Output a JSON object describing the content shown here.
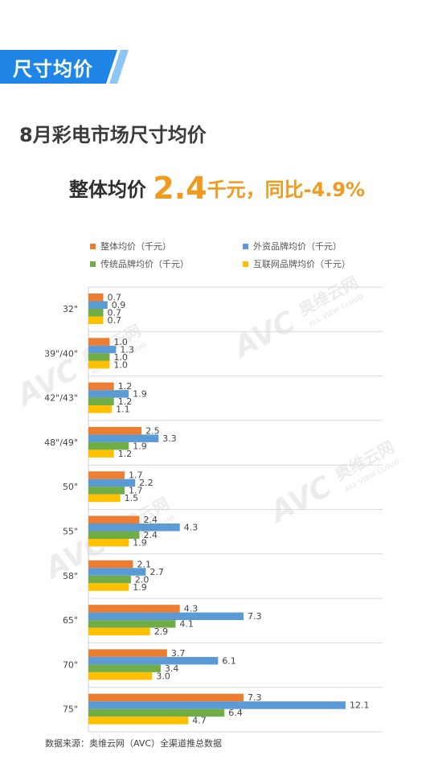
{
  "header": {
    "tag": "尺寸均价"
  },
  "subtitle": "8月彩电市场尺寸均价",
  "headline": {
    "prefix": "整体均价",
    "value": "2.4",
    "suffix": "千元，同比",
    "yoy": "-4.9%"
  },
  "colors": {
    "tag_blue": "#1f86e8",
    "tag_light_blue": "#8cc6f7",
    "accent_orange": "#f29a1f"
  },
  "watermark": {
    "logo": "AVC",
    "brand": "奥维云网",
    "sub": "ALL VIEW CLOUD"
  },
  "chart_data": {
    "type": "bar",
    "orientation": "horizontal",
    "categories": [
      "32\"",
      "39\"/40\"",
      "42\"/43\"",
      "48\"/49\"",
      "50\"",
      "55\"",
      "58\"",
      "65\"",
      "70\"",
      "75\""
    ],
    "series": [
      {
        "name": "整体均价（千元）",
        "color": "#ed7d31",
        "values": [
          0.7,
          1.0,
          1.2,
          2.5,
          1.7,
          2.4,
          2.1,
          4.3,
          3.7,
          7.3
        ]
      },
      {
        "name": "外资品牌均价（千元）",
        "color": "#5b9bd5",
        "values": [
          0.9,
          1.3,
          1.9,
          3.3,
          2.2,
          4.3,
          2.7,
          7.3,
          6.1,
          12.1
        ]
      },
      {
        "name": "传统品牌均价（千元）",
        "color": "#70ad47",
        "values": [
          0.7,
          1.0,
          1.2,
          1.9,
          1.7,
          2.4,
          2.0,
          4.1,
          3.4,
          6.4
        ]
      },
      {
        "name": "互联网品牌均价（千元）",
        "color": "#ffc000",
        "values": [
          0.7,
          1.0,
          1.1,
          1.2,
          1.5,
          1.9,
          1.9,
          2.9,
          3.0,
          4.7
        ]
      }
    ],
    "xlim": [
      0,
      12.1
    ],
    "value_format": "0.0",
    "legend_position": "top",
    "grid": "horizontal separators between categories"
  },
  "source": "数据来源：奥维云网（AVC）全渠道推总数据"
}
